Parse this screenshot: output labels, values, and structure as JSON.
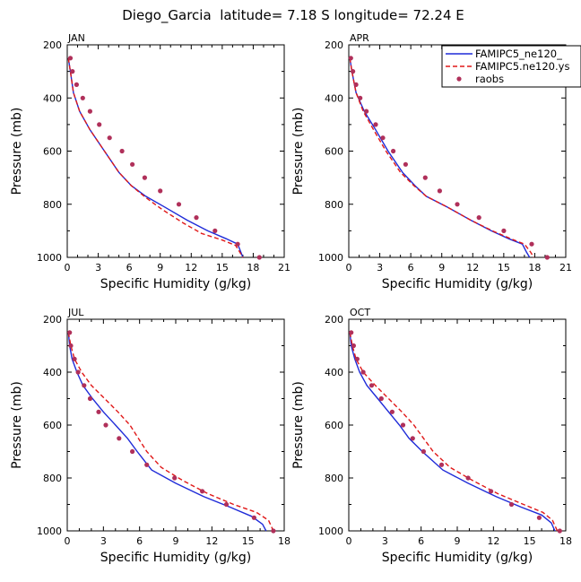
{
  "title": "Diego_Garcia  latitude= 7.18 S longitude= 72.24 E",
  "legend": [
    {
      "label": "FAMIPC5_ne120_",
      "style": "solid",
      "color": "#1f2bd8"
    },
    {
      "label": "FAMIPC5.ne120.ys",
      "style": "dashed",
      "color": "#e01818"
    },
    {
      "label": "raobs",
      "style": "dot",
      "color": "#b0305a"
    }
  ],
  "colors": {
    "model1": "#1f2bd8",
    "model2": "#e01818",
    "obs": "#b0305a"
  },
  "chart_data": [
    {
      "type": "line",
      "title": "JAN",
      "xlabel": "Specific Humidity (g/kg)",
      "ylabel": "Pressure (mb)",
      "xlim": [
        0,
        21
      ],
      "ylim": [
        1000,
        200
      ],
      "xticks": [
        0,
        3,
        6,
        9,
        12,
        15,
        18,
        21
      ],
      "yticks": [
        200,
        400,
        600,
        800,
        1000
      ],
      "series": [
        {
          "name": "FAMIPC5_ne120_",
          "x": [
            0.1,
            0.3,
            0.6,
            1.2,
            2.2,
            3.6,
            5.0,
            6.2,
            7.6,
            9.4,
            11.6,
            13.6,
            15.4,
            16.5,
            16.8,
            17.0
          ],
          "y": [
            250,
            300,
            380,
            450,
            520,
            600,
            680,
            730,
            770,
            810,
            860,
            900,
            930,
            950,
            980,
            1000
          ]
        },
        {
          "name": "FAMIPC5.ne120.ys",
          "x": [
            0.1,
            0.3,
            0.6,
            1.2,
            2.2,
            3.6,
            5.0,
            6.2,
            7.6,
            9.2,
            11.2,
            13.0,
            15.0,
            16.3,
            16.7,
            17.0
          ],
          "y": [
            250,
            300,
            380,
            450,
            520,
            600,
            680,
            730,
            775,
            820,
            870,
            910,
            935,
            955,
            980,
            1000
          ]
        },
        {
          "name": "raobs",
          "x": [
            0.3,
            0.5,
            0.9,
            1.5,
            2.2,
            3.1,
            4.1,
            5.3,
            6.3,
            7.5,
            9.0,
            10.8,
            12.5,
            14.3,
            16.5,
            18.6
          ],
          "y": [
            250,
            300,
            350,
            400,
            450,
            500,
            550,
            600,
            650,
            700,
            750,
            800,
            850,
            900,
            950,
            1000
          ]
        }
      ]
    },
    {
      "type": "line",
      "title": "APR",
      "xlabel": "Specific Humidity (g/kg)",
      "ylabel": "Pressure (mb)",
      "xlim": [
        0,
        21
      ],
      "ylim": [
        1000,
        200
      ],
      "xticks": [
        0,
        3,
        6,
        9,
        12,
        15,
        18,
        21
      ],
      "yticks": [
        200,
        400,
        600,
        800,
        1000
      ],
      "series": [
        {
          "name": "FAMIPC5_ne120_",
          "x": [
            0.1,
            0.3,
            0.7,
            1.5,
            2.6,
            3.8,
            5.2,
            6.4,
            7.5,
            9.5,
            11.8,
            13.8,
            15.5,
            16.8,
            17.2,
            17.5
          ],
          "y": [
            250,
            300,
            380,
            450,
            520,
            600,
            680,
            730,
            770,
            810,
            860,
            900,
            930,
            950,
            980,
            1000
          ]
        },
        {
          "name": "FAMIPC5.ne120.ys",
          "x": [
            0.1,
            0.3,
            0.7,
            1.4,
            2.4,
            3.6,
            5.0,
            6.3,
            7.5,
            9.5,
            11.8,
            13.9,
            15.7,
            17.0,
            17.6,
            17.9
          ],
          "y": [
            250,
            300,
            380,
            450,
            520,
            600,
            680,
            730,
            770,
            810,
            860,
            900,
            930,
            950,
            980,
            1000
          ]
        },
        {
          "name": "raobs",
          "x": [
            0.2,
            0.4,
            0.7,
            1.1,
            1.7,
            2.6,
            3.3,
            4.3,
            5.5,
            7.4,
            8.8,
            10.5,
            12.6,
            15.0,
            17.7,
            19.2
          ],
          "y": [
            250,
            300,
            350,
            400,
            450,
            500,
            550,
            600,
            650,
            700,
            750,
            800,
            850,
            900,
            950,
            1000
          ]
        }
      ]
    },
    {
      "type": "line",
      "title": "JUL",
      "xlabel": "Specific Humidity (g/kg)",
      "ylabel": "Pressure (mb)",
      "xlim": [
        0,
        18
      ],
      "ylim": [
        1000,
        200
      ],
      "xticks": [
        0,
        3,
        6,
        9,
        12,
        15,
        18
      ],
      "yticks": [
        200,
        400,
        600,
        800,
        1000
      ],
      "series": [
        {
          "name": "FAMIPC5_ne120_",
          "x": [
            0.1,
            0.2,
            0.4,
            0.8,
            1.3,
            2.1,
            3.0,
            4.0,
            5.0,
            5.8,
            7.0,
            9.0,
            11.3,
            13.5,
            15.3,
            16.2,
            16.5
          ],
          "y": [
            250,
            300,
            350,
            400,
            450,
            500,
            550,
            600,
            650,
            700,
            770,
            820,
            870,
            910,
            945,
            975,
            1000
          ]
        },
        {
          "name": "FAMIPC5.ne120.ys",
          "x": [
            0.1,
            0.3,
            0.6,
            1.2,
            2.0,
            3.1,
            4.2,
            5.2,
            5.9,
            6.6,
            7.8,
            9.6,
            11.7,
            13.8,
            15.7,
            16.7,
            17.1
          ],
          "y": [
            250,
            300,
            350,
            400,
            450,
            500,
            550,
            600,
            650,
            700,
            760,
            810,
            860,
            900,
            930,
            960,
            1000
          ]
        },
        {
          "name": "raobs",
          "x": [
            0.2,
            0.3,
            0.6,
            0.9,
            1.4,
            1.9,
            2.6,
            3.2,
            4.3,
            5.4,
            6.6,
            8.9,
            11.2,
            13.2,
            15.5,
            17.1
          ],
          "y": [
            250,
            300,
            350,
            400,
            450,
            500,
            550,
            600,
            650,
            700,
            750,
            800,
            850,
            900,
            950,
            1000
          ]
        }
      ]
    },
    {
      "type": "line",
      "title": "OCT",
      "xlabel": "Specific Humidity (g/kg)",
      "ylabel": "Pressure (mb)",
      "xlim": [
        0,
        18
      ],
      "ylim": [
        1000,
        200
      ],
      "xticks": [
        0,
        3,
        6,
        9,
        12,
        15,
        18
      ],
      "yticks": [
        200,
        400,
        600,
        800,
        1000
      ],
      "series": [
        {
          "name": "FAMIPC5_ne120_",
          "x": [
            0.1,
            0.2,
            0.5,
            0.9,
            1.5,
            2.4,
            3.3,
            4.2,
            5.0,
            6.1,
            7.8,
            9.9,
            12.2,
            14.3,
            16.0,
            16.8,
            17.1
          ],
          "y": [
            250,
            300,
            350,
            400,
            450,
            500,
            550,
            600,
            650,
            700,
            770,
            820,
            870,
            910,
            940,
            970,
            1000
          ]
        },
        {
          "name": "FAMIPC5.ne120.ys",
          "x": [
            0.1,
            0.3,
            0.6,
            1.2,
            2.2,
            3.3,
            4.4,
            5.4,
            6.2,
            7.0,
            8.4,
            10.3,
            12.4,
            14.5,
            16.1,
            16.9,
            17.3
          ],
          "y": [
            250,
            300,
            350,
            400,
            450,
            500,
            550,
            600,
            650,
            700,
            760,
            810,
            860,
            900,
            930,
            960,
            1000
          ]
        },
        {
          "name": "raobs",
          "x": [
            0.2,
            0.4,
            0.7,
            1.2,
            1.9,
            2.7,
            3.6,
            4.5,
            5.3,
            6.2,
            7.7,
            9.9,
            11.8,
            13.5,
            15.8,
            17.5
          ],
          "y": [
            250,
            300,
            350,
            400,
            450,
            500,
            550,
            600,
            650,
            700,
            750,
            800,
            850,
            900,
            950,
            1000
          ]
        }
      ]
    }
  ]
}
